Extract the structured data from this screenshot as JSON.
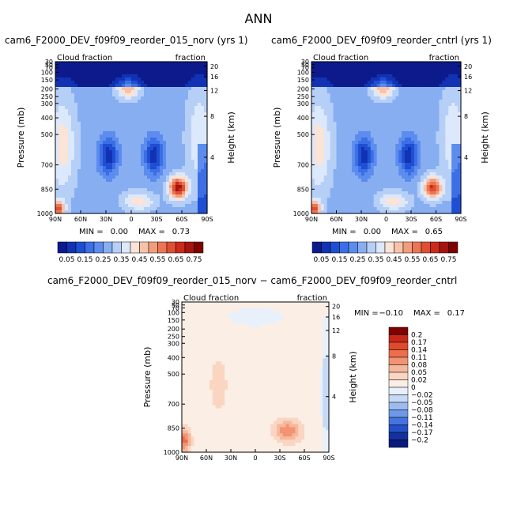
{
  "title": "ANN",
  "chart_data": [
    {
      "type": "heatmap",
      "title": "cam6_F2000_DEV_f09f09_reorder_015_norv (yrs 1)",
      "left_label": "Cloud fraction",
      "right_label": "fraction",
      "ylabel": "Pressure (mb)",
      "y2label": "Height (km)",
      "x_ticks": [
        "90N",
        "60N",
        "30N",
        "0",
        "30S",
        "60S",
        "90S"
      ],
      "y_ticks": [
        "30",
        "50",
        "70",
        "100",
        "150",
        "200",
        "250",
        "300",
        "400",
        "500",
        "700",
        "850",
        "1000"
      ],
      "y2_ticks": [
        "20",
        "16",
        "12",
        "8",
        "4"
      ],
      "min_label": "MIN =",
      "min_value": "0.00",
      "max_label": "MAX =",
      "max_value": "0.73"
    },
    {
      "type": "heatmap",
      "title": "cam6_F2000_DEV_f09f09_reorder_cntrl (yrs 1)",
      "left_label": "Cloud fraction",
      "right_label": "fraction",
      "ylabel": "Pressure (mb)",
      "y2label": "Height (km)",
      "x_ticks": [
        "90N",
        "60N",
        "30N",
        "0",
        "30S",
        "60S",
        "90S"
      ],
      "y_ticks": [
        "30",
        "50",
        "70",
        "100",
        "150",
        "200",
        "250",
        "300",
        "400",
        "500",
        "700",
        "850",
        "1000"
      ],
      "y2_ticks": [
        "20",
        "16",
        "12",
        "8",
        "4"
      ],
      "min_label": "MIN =",
      "min_value": "0.00",
      "max_label": "MAX =",
      "max_value": "0.65"
    },
    {
      "type": "heatmap",
      "title": "cam6_F2000_DEV_f09f09_reorder_015_norv − cam6_F2000_DEV_f09f09_reorder_cntrl",
      "left_label": "Cloud fraction",
      "right_label": "fraction",
      "ylabel": "Pressure (mb)",
      "y2label": "Height (km)",
      "x_ticks": [
        "90N",
        "60N",
        "30N",
        "0",
        "30S",
        "60S",
        "90S"
      ],
      "y_ticks": [
        "30",
        "50",
        "70",
        "100",
        "150",
        "200",
        "250",
        "300",
        "400",
        "500",
        "700",
        "850",
        "1000"
      ],
      "y2_ticks": [
        "20",
        "16",
        "12",
        "8",
        "4"
      ],
      "min_label": "MIN =",
      "min_value": "−0.10",
      "max_label": "MAX =",
      "max_value": "0.17"
    }
  ],
  "colorbar_main": {
    "labels": [
      "0.05",
      "0.15",
      "0.25",
      "0.35",
      "0.45",
      "0.55",
      "0.65",
      "0.75"
    ],
    "colors": [
      "#0d1a8c",
      "#1232b4",
      "#1e4fd2",
      "#3c6ee6",
      "#5b8cee",
      "#88aef2",
      "#b6cff7",
      "#dce8fb",
      "#fbe3d5",
      "#f7c3a8",
      "#f29d7c",
      "#ea7655",
      "#df4f33",
      "#cb2b1a",
      "#a51410",
      "#800000"
    ]
  },
  "colorbar_diff": {
    "labels": [
      "0.2",
      "0.17",
      "0.14",
      "0.11",
      "0.08",
      "0.05",
      "0.02",
      "0",
      "−0.02",
      "−0.05",
      "−0.08",
      "−0.11",
      "−0.14",
      "−0.17",
      "−0.2"
    ],
    "colors": [
      "#800000",
      "#c8281a",
      "#e04a2c",
      "#ec6e4b",
      "#f29474",
      "#f6b89c",
      "#fad6c2",
      "#fbeee5",
      "#e8f0fb",
      "#c6d9f6",
      "#9cbcf0",
      "#6e98e8",
      "#4574e0",
      "#2450c8",
      "#13309e",
      "#0a1a7c"
    ]
  }
}
